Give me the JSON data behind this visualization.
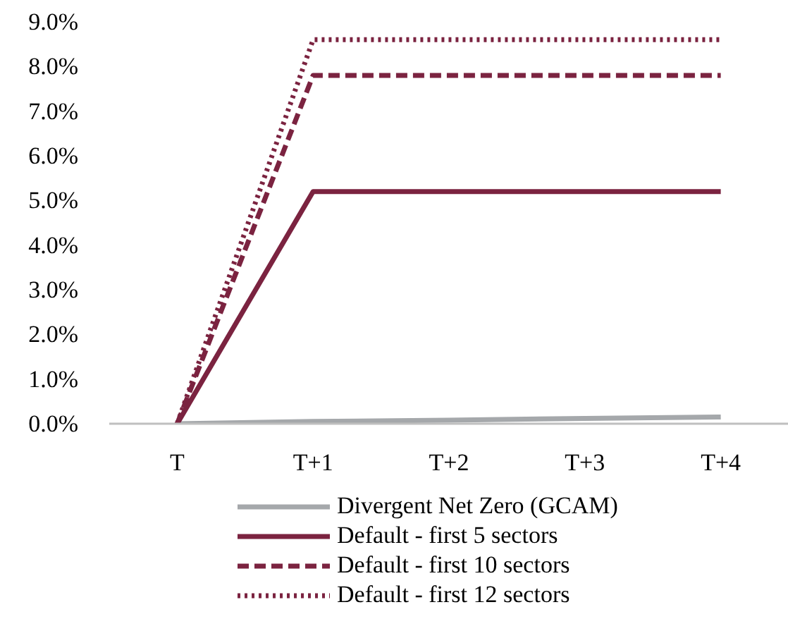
{
  "chart_data": {
    "type": "line",
    "categories": [
      "T",
      "T+1",
      "T+2",
      "T+3",
      "T+4"
    ],
    "ylim": [
      0,
      9
    ],
    "yticks": [
      {
        "value": 0,
        "label": "0.0%"
      },
      {
        "value": 1,
        "label": "1.0%"
      },
      {
        "value": 2,
        "label": "2.0%"
      },
      {
        "value": 3,
        "label": "3.0%"
      },
      {
        "value": 4,
        "label": "4.0%"
      },
      {
        "value": 5,
        "label": "5.0%"
      },
      {
        "value": 6,
        "label": "6.0%"
      },
      {
        "value": 7,
        "label": "7.0%"
      },
      {
        "value": 8,
        "label": "8.0%"
      },
      {
        "value": 9,
        "label": "9.0%"
      }
    ],
    "grid": false,
    "legend": "bottom",
    "marker": "none",
    "series": [
      {
        "name": "Divergent Net Zero (GCAM)",
        "color": "#a5a8ab",
        "line_style": "solid",
        "values": [
          0,
          0.05,
          0.08,
          0.12,
          0.15
        ]
      },
      {
        "name": "Default - first 5 sectors",
        "color": "#7b2340",
        "line_style": "solid",
        "values": [
          0,
          5.2,
          5.2,
          5.2,
          5.2
        ]
      },
      {
        "name": "Default - first 10 sectors",
        "color": "#7b2340",
        "line_style": "dashed",
        "values": [
          0,
          7.8,
          7.8,
          7.8,
          7.8
        ]
      },
      {
        "name": "Default - first 12 sectors",
        "color": "#7b2340",
        "line_style": "dotted",
        "values": [
          0,
          8.6,
          8.6,
          8.6,
          8.6
        ]
      }
    ]
  }
}
